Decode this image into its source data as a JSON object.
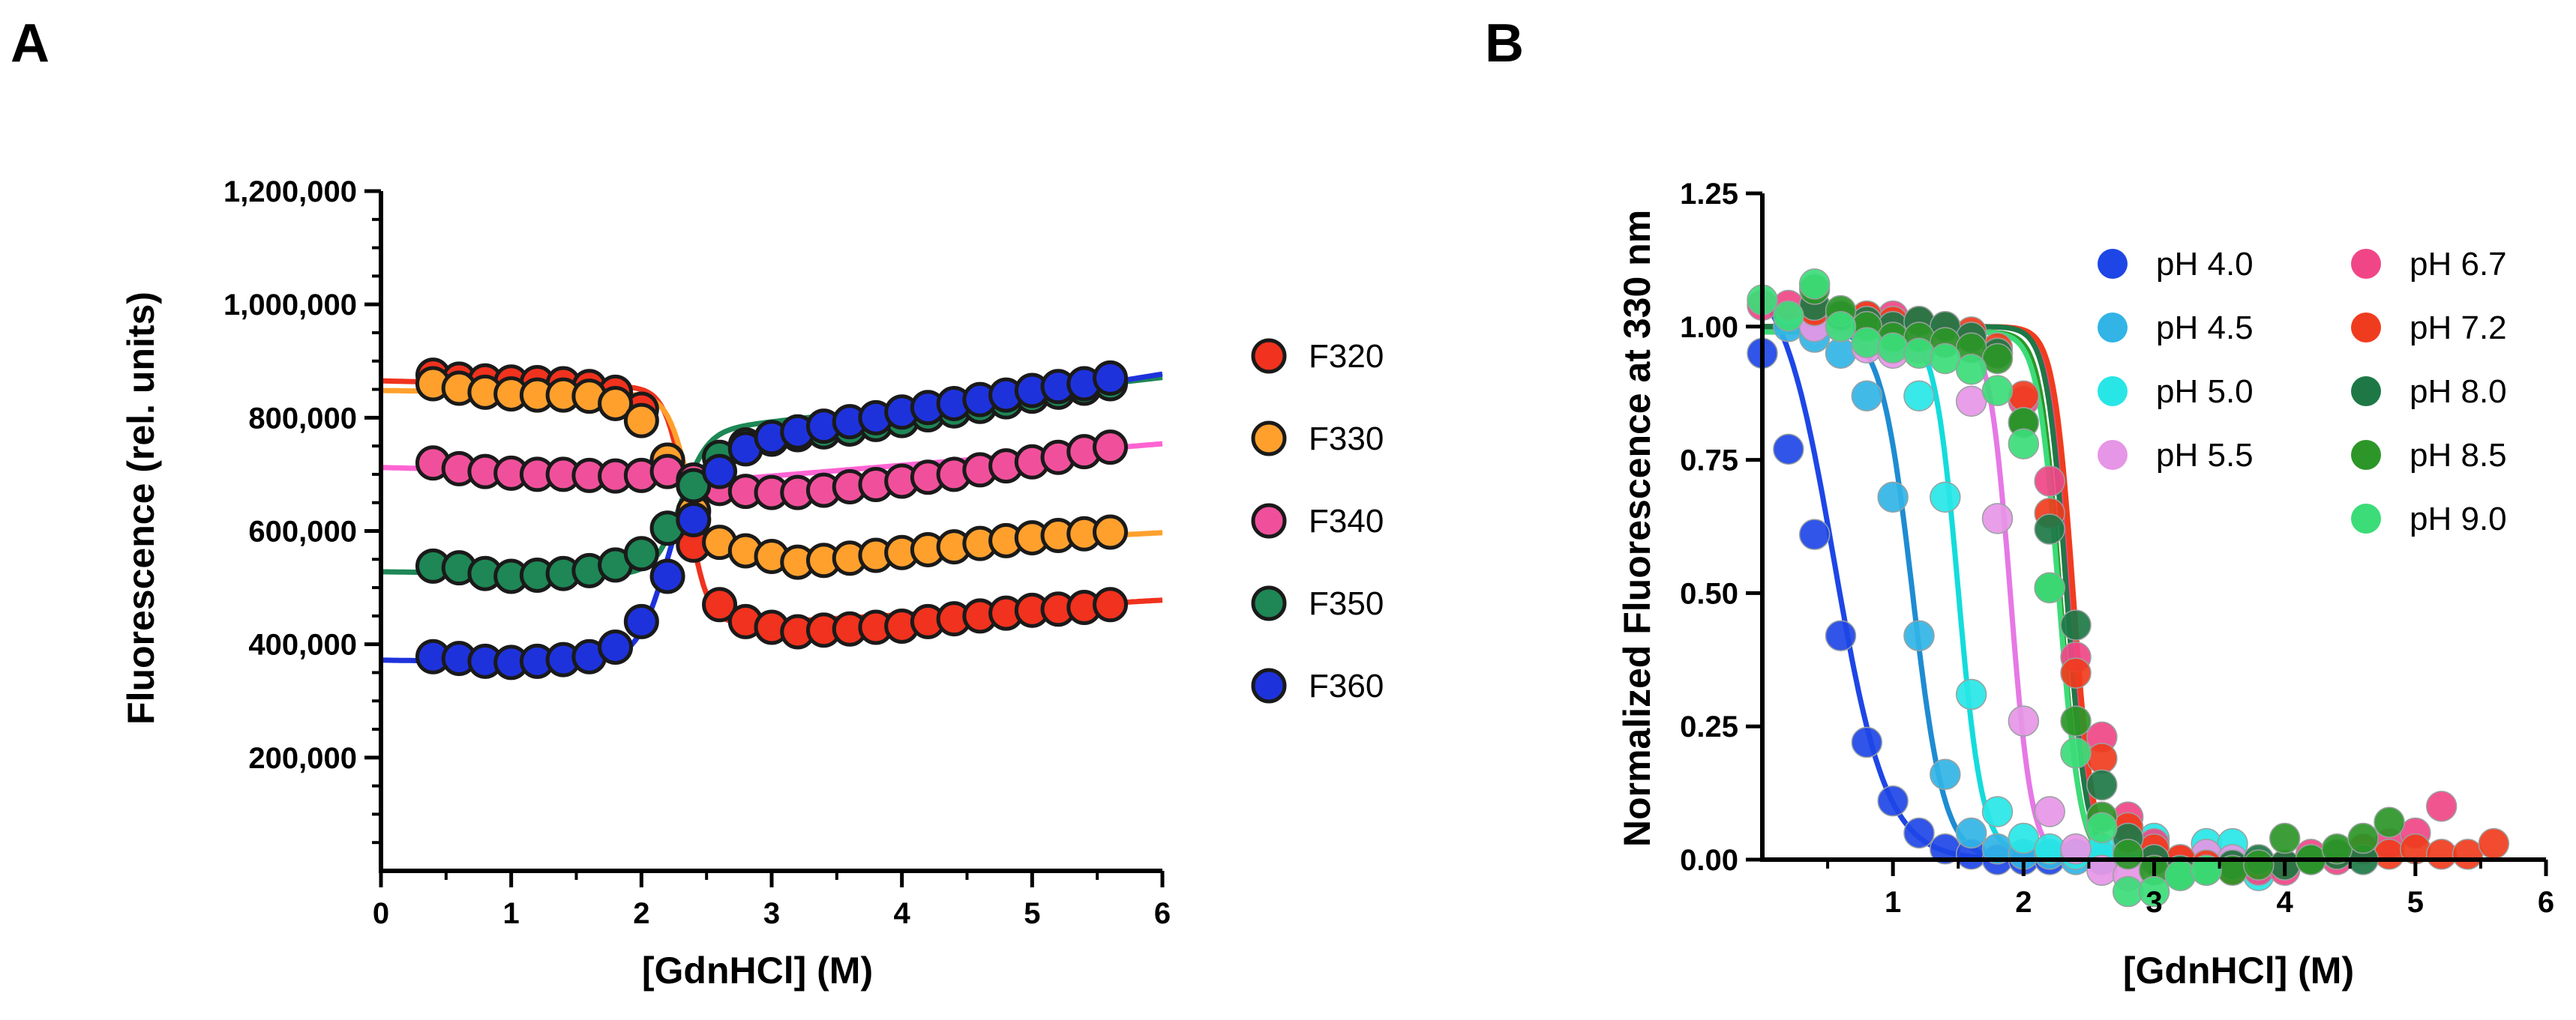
{
  "chart_data": [
    {
      "type": "scatter",
      "panel_label": "A",
      "title": "",
      "xlabel": "[GdnHCl] (M)",
      "ylabel": "Fluorescence (rel. units)",
      "xlim": [
        0,
        6
      ],
      "ylim": [
        0,
        1200000
      ],
      "xticks": [
        "0",
        "1",
        "2",
        "3",
        "4",
        "5",
        "6"
      ],
      "xtick_values": [
        0,
        1,
        2,
        3,
        4,
        5,
        6
      ],
      "yticks": [
        "200,000",
        "400,000",
        "600,000",
        "800,000",
        "1,000,000",
        "1,200,000"
      ],
      "ytick_values": [
        200000,
        400000,
        600000,
        800000,
        1000000,
        1200000
      ],
      "grid": false,
      "legend_position": "right",
      "x": [
        0.4,
        0.6,
        0.8,
        1.0,
        1.2,
        1.4,
        1.6,
        1.8,
        2.0,
        2.2,
        2.4,
        2.6,
        2.8,
        3.0,
        3.2,
        3.4,
        3.6,
        3.8,
        4.0,
        4.2,
        4.4,
        4.6,
        4.8,
        5.0,
        5.2,
        5.4,
        5.6
      ],
      "series": [
        {
          "name": "F320",
          "color": "#f0321e",
          "line_color": "#f0321e",
          "values": [
            875000,
            868000,
            865000,
            863000,
            862000,
            860000,
            855000,
            845000,
            815000,
            725000,
            575000,
            470000,
            440000,
            430000,
            422000,
            425000,
            427000,
            430000,
            432000,
            440000,
            445000,
            450000,
            455000,
            460000,
            462000,
            465000,
            470000
          ],
          "fit": {
            "type": "sigmoid",
            "start": 865000,
            "start_slope": -5000,
            "end": 400000,
            "end_slope": 13000,
            "mid": 2.35,
            "width": 0.08,
            "x0": 0,
            "x1": 6
          }
        },
        {
          "name": "F330",
          "color": "#ffa02d",
          "line_color": "#ffa02d",
          "values": [
            860000,
            852000,
            845000,
            842000,
            840000,
            840000,
            838000,
            825000,
            795000,
            725000,
            635000,
            580000,
            565000,
            555000,
            545000,
            548000,
            552000,
            557000,
            562000,
            567000,
            572000,
            578000,
            583000,
            588000,
            592000,
            595000,
            598000
          ],
          "fit": {
            "type": "sigmoid",
            "start": 848000,
            "start_slope": -3000,
            "end": 525000,
            "end_slope": 12000,
            "mid": 2.35,
            "width": 0.08,
            "x0": 0,
            "x1": 6
          }
        },
        {
          "name": "F340",
          "color": "#f0509b",
          "line_color": "#ff64d2",
          "values": [
            720000,
            710000,
            705000,
            702000,
            700000,
            700000,
            698000,
            697000,
            698000,
            705000,
            690000,
            675000,
            670000,
            668000,
            668000,
            672000,
            678000,
            682000,
            688000,
            695000,
            700000,
            708000,
            715000,
            722000,
            730000,
            740000,
            748000
          ],
          "fit": {
            "type": "sigmoid",
            "start": 712000,
            "start_slope": -5000,
            "end": 640000,
            "end_slope": 19000,
            "mid": 2.3,
            "width": 0.1,
            "x0": 0,
            "x1": 6
          }
        },
        {
          "name": "F350",
          "color": "#1e8755",
          "line_color": "#1e8755",
          "values": [
            538000,
            535000,
            525000,
            520000,
            522000,
            525000,
            530000,
            540000,
            560000,
            605000,
            680000,
            730000,
            752000,
            762000,
            770000,
            775000,
            780000,
            788000,
            795000,
            805000,
            812000,
            820000,
            828000,
            838000,
            845000,
            852000,
            860000
          ],
          "fit": {
            "type": "sigmoid",
            "start": 528000,
            "start_slope": -3000,
            "end": 715000,
            "end_slope": 26000,
            "mid": 2.3,
            "width": 0.1,
            "x0": 0,
            "x1": 6
          }
        },
        {
          "name": "F360",
          "color": "#1e32dc",
          "line_color": "#1e32dc",
          "values": [
            378000,
            375000,
            370000,
            368000,
            370000,
            373000,
            378000,
            395000,
            440000,
            520000,
            620000,
            705000,
            745000,
            765000,
            775000,
            785000,
            793000,
            800000,
            810000,
            818000,
            825000,
            832000,
            840000,
            848000,
            855000,
            860000,
            870000
          ],
          "fit": {
            "type": "sigmoid",
            "start": 372000,
            "start_slope": -3000,
            "end": 655000,
            "end_slope": 37000,
            "mid": 2.2,
            "width": 0.12,
            "x0": 0,
            "x1": 6
          }
        }
      ]
    },
    {
      "type": "scatter",
      "panel_label": "B",
      "title": "",
      "xlabel": "[GdnHCl] (M)",
      "ylabel": "Normalized Fluorescence at 330 nm",
      "xlim": [
        0,
        6
      ],
      "ylim": [
        0,
        1.25
      ],
      "xticks": [
        "1",
        "2",
        "3",
        "4",
        "5",
        "6"
      ],
      "xtick_values": [
        1,
        2,
        3,
        4,
        5,
        6
      ],
      "yticks": [
        "0.00",
        "0.25",
        "0.50",
        "0.75",
        "1.00",
        "1.25"
      ],
      "ytick_values": [
        0,
        0.25,
        0.5,
        0.75,
        1.0,
        1.25
      ],
      "grid": false,
      "legend_position": "top-right",
      "legend_columns": 2,
      "series": [
        {
          "name": "pH 4.0",
          "color": "#1e46e6",
          "line_color": "#1e46e6",
          "x": [
            0.0,
            0.2,
            0.4,
            0.6,
            0.8,
            1.0,
            1.2,
            1.4,
            1.6,
            1.8,
            2.0,
            2.2,
            2.4,
            2.6,
            2.8
          ],
          "y": [
            0.95,
            0.77,
            0.61,
            0.42,
            0.22,
            0.11,
            0.05,
            0.02,
            0.01,
            0.0,
            0.0,
            0.0,
            0.01,
            0.0,
            0.01
          ],
          "fit": {
            "type": "logistic",
            "top": 1.12,
            "bottom": 0.0,
            "mid": 0.55,
            "width": 0.2,
            "x0": 0.0,
            "x1": 3.0
          }
        },
        {
          "name": "pH 4.5",
          "color": "#32b4e6",
          "line_color": "#1e8cd2",
          "x": [
            0.2,
            0.4,
            0.6,
            0.8,
            1.0,
            1.2,
            1.4,
            1.6,
            1.8,
            2.0,
            2.2,
            2.4,
            2.6,
            2.8,
            3.0,
            3.2,
            3.4
          ],
          "y": [
            1.0,
            0.98,
            0.95,
            0.87,
            0.68,
            0.42,
            0.16,
            0.05,
            0.02,
            0.01,
            0.01,
            0.0,
            0.0,
            0.01,
            0.02,
            0.0,
            0.01
          ],
          "fit": {
            "type": "logistic",
            "top": 1.0,
            "bottom": 0.0,
            "mid": 1.15,
            "width": 0.12,
            "x0": 0.0,
            "x1": 3.4
          }
        },
        {
          "name": "pH 5.0",
          "color": "#28e6e6",
          "line_color": "#14dcdc",
          "x": [
            0.8,
            1.0,
            1.2,
            1.4,
            1.6,
            1.8,
            2.0,
            2.2,
            2.4,
            2.6,
            2.8,
            3.0,
            3.4,
            3.6,
            3.8
          ],
          "y": [
            1.0,
            0.97,
            0.87,
            0.68,
            0.31,
            0.09,
            0.04,
            0.02,
            0.01,
            0.02,
            0.02,
            0.04,
            0.03,
            0.03,
            -0.03
          ],
          "fit": {
            "type": "logistic",
            "top": 1.0,
            "bottom": 0.01,
            "mid": 1.5,
            "width": 0.09,
            "x0": 0.0,
            "x1": 3.8
          }
        },
        {
          "name": "pH 5.5",
          "color": "#e696e6",
          "line_color": "#e678e6",
          "x": [
            0.4,
            0.6,
            0.8,
            1.0,
            1.2,
            1.4,
            1.6,
            1.8,
            2.0,
            2.2,
            2.4,
            2.6,
            2.8,
            3.0,
            3.2,
            3.4,
            3.6
          ],
          "y": [
            1.0,
            1.0,
            0.96,
            0.95,
            0.96,
            0.98,
            0.86,
            0.64,
            0.26,
            0.09,
            0.02,
            -0.02,
            -0.03,
            0.0,
            0.0,
            0.01,
            0.0
          ],
          "fit": {
            "type": "logistic",
            "top": 0.99,
            "bottom": 0.0,
            "mid": 1.9,
            "width": 0.08,
            "x0": 0.0,
            "x1": 3.6
          }
        },
        {
          "name": "pH 6.7",
          "color": "#f04687",
          "line_color": "#f04687",
          "x": [
            0.0,
            0.2,
            0.4,
            0.6,
            0.8,
            1.0,
            1.2,
            1.4,
            1.6,
            1.8,
            2.0,
            2.2,
            2.4,
            2.6,
            2.8,
            3.0,
            3.2,
            3.4,
            3.6,
            3.8,
            4.0,
            4.2,
            4.4,
            4.6,
            4.8,
            5.0,
            5.2
          ],
          "y": [
            1.04,
            1.04,
            1.03,
            1.02,
            1.02,
            1.02,
            1.01,
            1.0,
            0.98,
            0.95,
            0.86,
            0.71,
            0.38,
            0.23,
            0.08,
            0.03,
            0.0,
            -0.02,
            -0.01,
            -0.02,
            -0.02,
            0.01,
            0.0,
            0.02,
            0.03,
            0.05,
            0.1
          ],
          "fit": {
            "type": "logistic",
            "top": 1.0,
            "bottom": 0.0,
            "mid": 2.35,
            "width": 0.075,
            "x0": 0.0,
            "x1": 3.0
          }
        },
        {
          "name": "pH 7.2",
          "color": "#f03c1e",
          "line_color": "#f03c1e",
          "x": [
            0.4,
            0.6,
            0.8,
            1.0,
            1.2,
            1.4,
            1.6,
            1.8,
            2.0,
            2.2,
            2.4,
            2.6,
            2.8,
            3.0,
            3.2,
            3.4,
            3.6,
            3.8,
            4.0,
            4.2,
            4.4,
            4.6,
            4.8,
            5.0,
            5.2,
            5.4,
            5.6
          ],
          "y": [
            1.03,
            1.02,
            1.02,
            1.01,
            1.01,
            1.0,
            0.99,
            0.96,
            0.87,
            0.65,
            0.35,
            0.19,
            0.06,
            0.02,
            0.0,
            -0.01,
            -0.02,
            -0.01,
            -0.01,
            0.0,
            0.01,
            0.02,
            0.01,
            0.02,
            0.01,
            0.01,
            0.03
          ],
          "fit": {
            "type": "logistic",
            "top": 1.0,
            "bottom": 0.0,
            "mid": 2.38,
            "width": 0.075,
            "x0": 0.0,
            "x1": 3.0
          }
        },
        {
          "name": "pH 8.0",
          "color": "#1e7846",
          "line_color": "#1e7846",
          "x": [
            0.4,
            0.6,
            0.8,
            1.0,
            1.2,
            1.4,
            1.6,
            1.8,
            2.0,
            2.2,
            2.4,
            2.6,
            2.8,
            3.0,
            3.2,
            3.4,
            3.6,
            3.8,
            4.0,
            4.2,
            4.4,
            4.6
          ],
          "y": [
            1.04,
            1.02,
            1.01,
            1.0,
            1.01,
            1.0,
            0.98,
            0.95,
            0.82,
            0.62,
            0.44,
            0.14,
            0.04,
            0.0,
            -0.02,
            -0.02,
            -0.01,
            0.0,
            -0.01,
            0.0,
            0.01,
            0.0
          ],
          "fit": {
            "type": "logistic",
            "top": 1.0,
            "bottom": 0.0,
            "mid": 2.33,
            "width": 0.075,
            "x0": 0.0,
            "x1": 3.0
          }
        },
        {
          "name": "pH 8.5",
          "color": "#2d9628",
          "line_color": "#2d9628",
          "x": [
            0.4,
            0.6,
            0.8,
            1.0,
            1.2,
            1.4,
            1.6,
            1.8,
            2.0,
            2.2,
            2.4,
            2.6,
            2.8,
            3.0,
            3.2,
            3.4,
            3.6,
            3.8,
            4.0,
            4.2,
            4.4,
            4.6,
            4.8
          ],
          "y": [
            1.07,
            1.03,
            1.0,
            0.98,
            0.98,
            0.97,
            0.96,
            0.94,
            0.82,
            0.51,
            0.26,
            0.08,
            0.01,
            -0.02,
            -0.03,
            -0.02,
            -0.02,
            -0.01,
            0.04,
            0.0,
            0.02,
            0.04,
            0.07
          ],
          "fit": {
            "type": "logistic",
            "top": 0.99,
            "bottom": 0.0,
            "mid": 2.28,
            "width": 0.075,
            "x0": 0.0,
            "x1": 3.0
          }
        },
        {
          "name": "pH 9.0",
          "color": "#3cdc78",
          "line_color": "#3cdc78",
          "x": [
            0.0,
            0.2,
            0.4,
            0.6,
            0.8,
            1.0,
            1.2,
            1.4,
            1.6,
            1.8,
            2.0,
            2.2,
            2.4,
            2.6,
            2.8,
            3.0,
            3.2,
            3.4
          ],
          "y": [
            1.05,
            1.02,
            1.08,
            1.0,
            0.97,
            0.96,
            0.95,
            0.94,
            0.92,
            0.88,
            0.78,
            0.51,
            0.2,
            0.06,
            -0.06,
            -0.06,
            -0.03,
            -0.02
          ],
          "fit": {
            "type": "logistic",
            "top": 0.99,
            "bottom": 0.0,
            "mid": 2.27,
            "width": 0.08,
            "x0": 0.0,
            "x1": 3.0
          }
        }
      ]
    }
  ]
}
